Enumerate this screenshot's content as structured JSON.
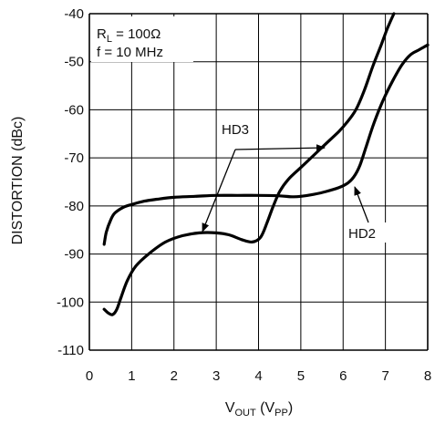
{
  "chart_data": {
    "type": "line",
    "xlabel": {
      "main": "V",
      "sub1": "OUT",
      "mid": " (V",
      "sub2": "PP",
      "end": ")"
    },
    "ylabel": "DISTORTION (dBc)",
    "xlim": [
      0,
      8
    ],
    "ylim": [
      -110,
      -40
    ],
    "x_ticks": [
      0,
      1,
      2,
      3,
      4,
      5,
      6,
      7,
      8
    ],
    "y_ticks": [
      -110,
      -100,
      -90,
      -80,
      -70,
      -60,
      -50,
      -40
    ],
    "grid": true,
    "conditions": {
      "rl": {
        "main": "R",
        "sub": "L",
        "rest": " = 100Ω"
      },
      "freq": "f = 10 MHz"
    },
    "series": [
      {
        "name": "HD2",
        "x": [
          0.35,
          0.4,
          0.5,
          0.6,
          0.8,
          1.0,
          1.3,
          1.6,
          2.0,
          2.5,
          3.0,
          3.5,
          4.0,
          4.5,
          4.8,
          5.0,
          5.3,
          5.6,
          5.9,
          6.1,
          6.25,
          6.4,
          6.55,
          6.7,
          6.85,
          7.0,
          7.2,
          7.4,
          7.6,
          7.8,
          8.0
        ],
        "y": [
          -88,
          -85.5,
          -83,
          -81.5,
          -80.3,
          -79.7,
          -79.0,
          -78.6,
          -78.2,
          -78.0,
          -77.8,
          -77.8,
          -77.8,
          -77.9,
          -78.1,
          -78.0,
          -77.6,
          -77.0,
          -76.2,
          -75.3,
          -74.0,
          -71.5,
          -67.5,
          -63.5,
          -60.0,
          -57.0,
          -53.5,
          -50.5,
          -48.5,
          -47.5,
          -46.5
        ]
      },
      {
        "name": "HD3",
        "x": [
          0.35,
          0.45,
          0.55,
          0.65,
          0.75,
          0.9,
          1.1,
          1.4,
          1.8,
          2.2,
          2.6,
          3.0,
          3.3,
          3.6,
          3.85,
          4.05,
          4.2,
          4.35,
          4.5,
          4.7,
          5.0,
          5.3,
          5.6,
          5.9,
          6.1,
          6.3,
          6.5,
          6.7,
          6.9,
          7.05,
          7.2
        ],
        "y": [
          -101.5,
          -102.3,
          -102.6,
          -101.5,
          -99.0,
          -95.5,
          -92.5,
          -90.0,
          -87.5,
          -86.2,
          -85.6,
          -85.6,
          -86.0,
          -87.0,
          -87.5,
          -86.5,
          -83.5,
          -80.0,
          -77.0,
          -74.5,
          -72.0,
          -69.5,
          -67.0,
          -64.5,
          -62.5,
          -60.0,
          -56.0,
          -51.0,
          -46.5,
          -43.0,
          -40.0
        ]
      }
    ],
    "annotations": {
      "hd3_label": "HD3",
      "hd2_label": "HD2"
    }
  }
}
